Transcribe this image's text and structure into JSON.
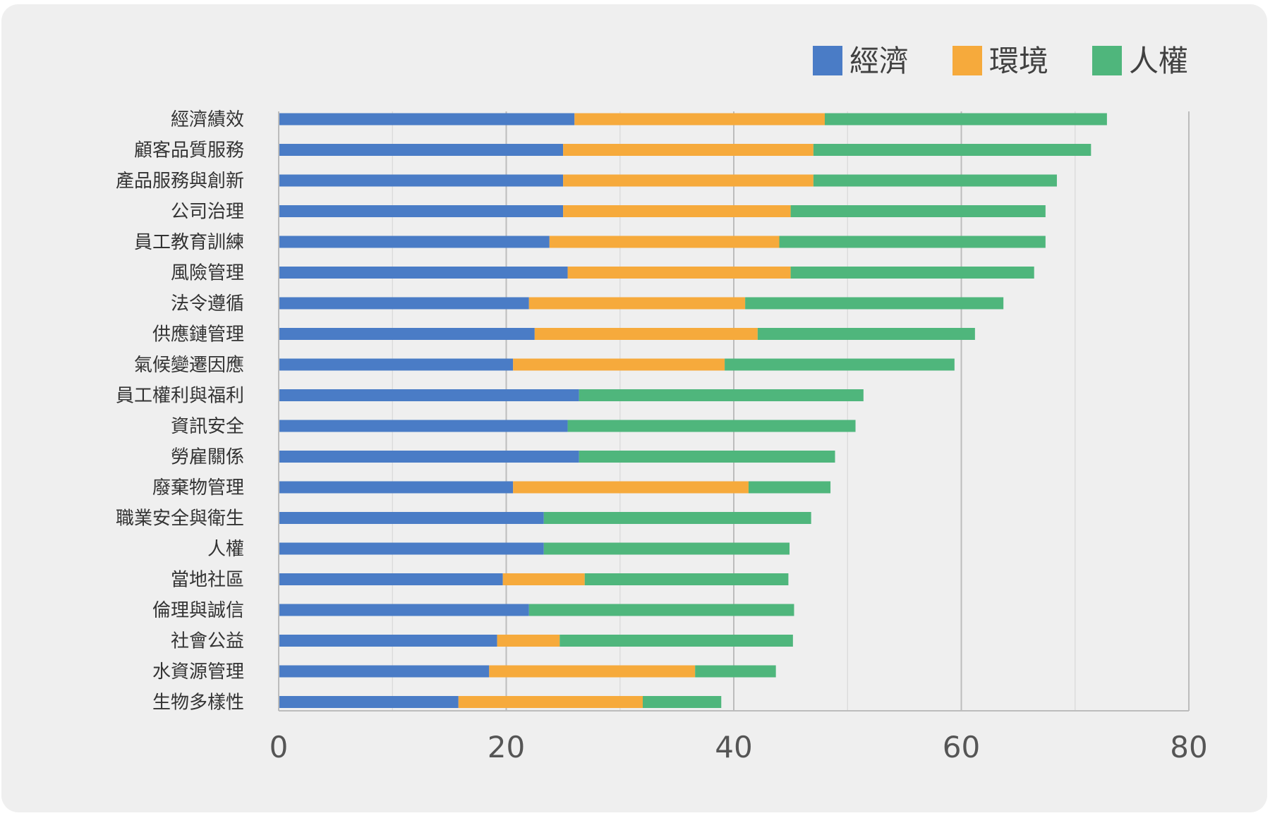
{
  "chart_data": {
    "type": "bar",
    "orientation": "horizontal",
    "stacked": true,
    "categories": [
      "經濟績效",
      "顧客品質服務",
      "產品服務與創新",
      "公司治理",
      "員工教育訓練",
      "風險管理",
      "法令遵循",
      "供應鏈管理",
      "氣候變遷因應",
      "員工權利與福利",
      "資訊安全",
      "勞雇關係",
      "廢棄物管理",
      "職業安全與衛生",
      "人權",
      "當地社區",
      "倫理與誠信",
      "社會公益",
      "水資源管理",
      "生物多樣性"
    ],
    "series": [
      {
        "name": "經濟",
        "color": "#4a7cc6",
        "values": [
          26,
          25,
          25,
          25,
          23.8,
          25.4,
          22,
          22.5,
          20.6,
          26.4,
          25.4,
          26.4,
          20.6,
          23.3,
          23.3,
          19.7,
          22,
          19.2,
          18.5,
          15.8
        ]
      },
      {
        "name": "環境",
        "color": "#f6aa3c",
        "values": [
          22,
          22,
          22,
          20,
          20.2,
          19.6,
          19,
          19.6,
          18.6,
          0,
          0,
          0,
          20.7,
          0,
          0,
          7.2,
          0,
          5.5,
          18.1,
          16.2
        ]
      },
      {
        "name": "人權",
        "color": "#4fb67c",
        "values": [
          24.8,
          24.4,
          21.4,
          22.4,
          23.4,
          21.4,
          22.7,
          19.1,
          20.2,
          25,
          25.3,
          22.5,
          7.2,
          23.5,
          21.6,
          17.9,
          23.3,
          20.5,
          7.1,
          6.9
        ]
      }
    ],
    "x_ticks": [
      0,
      20,
      40,
      60,
      80
    ],
    "xlim": [
      0,
      80
    ],
    "grid": true,
    "legend_position": "top-right",
    "title": "",
    "xlabel": "",
    "ylabel": ""
  }
}
